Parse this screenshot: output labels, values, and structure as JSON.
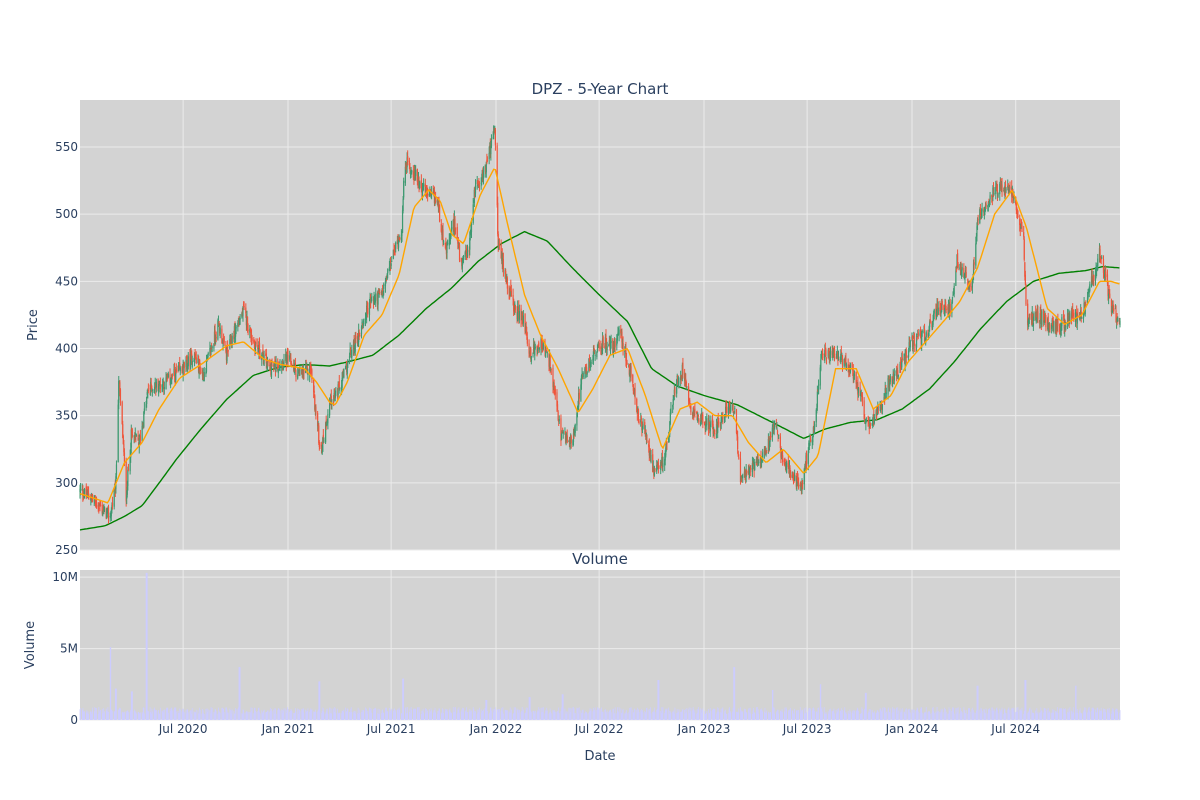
{
  "chart_data": [
    {
      "type": "candlestick",
      "title": "DPZ - 5-Year Chart",
      "xlabel": "",
      "ylabel": "Price",
      "ylim": [
        250,
        585
      ],
      "yticks": [
        250,
        300,
        350,
        400,
        450,
        500,
        550
      ],
      "grid": true,
      "legend": "none",
      "date_range": [
        "2020-01-02",
        "2024-12-31"
      ],
      "colors": {
        "up": "#3d9970",
        "down": "#ef553b",
        "ma_short": "#ffa500",
        "ma_long": "#008000",
        "plot_bg": "#d3d3d3"
      },
      "close_anchors": [
        [
          "2020-01-02",
          294
        ],
        [
          "2020-01-20",
          290
        ],
        [
          "2020-02-10",
          280
        ],
        [
          "2020-02-24",
          275
        ],
        [
          "2020-03-05",
          300
        ],
        [
          "2020-03-10",
          378
        ],
        [
          "2020-03-17",
          335
        ],
        [
          "2020-03-23",
          290
        ],
        [
          "2020-04-01",
          335
        ],
        [
          "2020-04-15",
          330
        ],
        [
          "2020-05-01",
          370
        ],
        [
          "2020-06-01",
          375
        ],
        [
          "2020-07-01",
          385
        ],
        [
          "2020-07-20",
          395
        ],
        [
          "2020-08-05",
          380
        ],
        [
          "2020-09-01",
          418
        ],
        [
          "2020-09-15",
          395
        ],
        [
          "2020-10-01",
          415
        ],
        [
          "2020-10-15",
          428
        ],
        [
          "2020-11-01",
          405
        ],
        [
          "2020-12-01",
          385
        ],
        [
          "2021-01-01",
          392
        ],
        [
          "2021-01-20",
          380
        ],
        [
          "2021-02-10",
          385
        ],
        [
          "2021-02-25",
          330
        ],
        [
          "2021-03-01",
          325
        ],
        [
          "2021-03-15",
          360
        ],
        [
          "2021-04-01",
          370
        ],
        [
          "2021-04-20",
          395
        ],
        [
          "2021-05-05",
          410
        ],
        [
          "2021-05-25",
          435
        ],
        [
          "2021-06-15",
          440
        ],
        [
          "2021-07-01",
          465
        ],
        [
          "2021-07-20",
          490
        ],
        [
          "2021-07-25",
          540
        ],
        [
          "2021-08-10",
          530
        ],
        [
          "2021-09-01",
          515
        ],
        [
          "2021-09-20",
          510
        ],
        [
          "2021-10-05",
          470
        ],
        [
          "2021-10-20",
          495
        ],
        [
          "2021-11-01",
          460
        ],
        [
          "2021-11-15",
          475
        ],
        [
          "2021-11-25",
          520
        ],
        [
          "2021-12-10",
          530
        ],
        [
          "2021-12-20",
          545
        ],
        [
          "2021-12-30",
          565
        ],
        [
          "2022-01-05",
          475
        ],
        [
          "2022-01-15",
          460
        ],
        [
          "2022-02-01",
          430
        ],
        [
          "2022-02-20",
          420
        ],
        [
          "2022-03-01",
          395
        ],
        [
          "2022-03-20",
          405
        ],
        [
          "2022-04-05",
          390
        ],
        [
          "2022-04-25",
          335
        ],
        [
          "2022-05-15",
          330
        ],
        [
          "2022-05-30",
          375
        ],
        [
          "2022-06-20",
          395
        ],
        [
          "2022-07-10",
          405
        ],
        [
          "2022-07-25",
          400
        ],
        [
          "2022-08-05",
          415
        ],
        [
          "2022-08-25",
          380
        ],
        [
          "2022-09-10",
          345
        ],
        [
          "2022-09-25",
          330
        ],
        [
          "2022-10-05",
          305
        ],
        [
          "2022-10-25",
          320
        ],
        [
          "2022-11-10",
          370
        ],
        [
          "2022-11-25",
          385
        ],
        [
          "2022-12-10",
          355
        ],
        [
          "2023-01-01",
          345
        ],
        [
          "2023-01-20",
          340
        ],
        [
          "2023-02-10",
          355
        ],
        [
          "2023-02-25",
          355
        ],
        [
          "2023-03-05",
          300
        ],
        [
          "2023-03-25",
          310
        ],
        [
          "2023-04-10",
          320
        ],
        [
          "2023-04-25",
          330
        ],
        [
          "2023-05-05",
          345
        ],
        [
          "2023-05-20",
          315
        ],
        [
          "2023-06-05",
          305
        ],
        [
          "2023-06-20",
          295
        ],
        [
          "2023-07-01",
          320
        ],
        [
          "2023-07-15",
          345
        ],
        [
          "2023-07-25",
          395
        ],
        [
          "2023-08-20",
          395
        ],
        [
          "2023-09-15",
          385
        ],
        [
          "2023-10-05",
          360
        ],
        [
          "2023-10-15",
          340
        ],
        [
          "2023-11-01",
          350
        ],
        [
          "2023-11-20",
          375
        ],
        [
          "2023-12-10",
          385
        ],
        [
          "2024-01-01",
          405
        ],
        [
          "2024-01-25",
          410
        ],
        [
          "2024-02-15",
          430
        ],
        [
          "2024-03-10",
          430
        ],
        [
          "2024-03-20",
          465
        ],
        [
          "2024-04-15",
          445
        ],
        [
          "2024-04-26",
          500
        ],
        [
          "2024-05-20",
          515
        ],
        [
          "2024-06-05",
          520
        ],
        [
          "2024-06-25",
          515
        ],
        [
          "2024-07-05",
          500
        ],
        [
          "2024-07-15",
          480
        ],
        [
          "2024-07-20",
          420
        ],
        [
          "2024-08-10",
          425
        ],
        [
          "2024-09-10",
          415
        ],
        [
          "2024-10-10",
          425
        ],
        [
          "2024-10-25",
          425
        ],
        [
          "2024-11-15",
          455
        ],
        [
          "2024-11-25",
          470
        ],
        [
          "2024-12-05",
          455
        ],
        [
          "2024-12-15",
          430
        ],
        [
          "2024-12-31",
          420
        ]
      ],
      "ma_short": [
        [
          "2020-01-02",
          292
        ],
        [
          "2020-02-20",
          285
        ],
        [
          "2020-03-20",
          315
        ],
        [
          "2020-04-20",
          330
        ],
        [
          "2020-05-20",
          355
        ],
        [
          "2020-06-25",
          378
        ],
        [
          "2020-08-01",
          388
        ],
        [
          "2020-09-15",
          402
        ],
        [
          "2020-10-15",
          405
        ],
        [
          "2020-11-20",
          392
        ],
        [
          "2020-12-20",
          388
        ],
        [
          "2021-01-30",
          385
        ],
        [
          "2021-02-20",
          375
        ],
        [
          "2021-03-15",
          360
        ],
        [
          "2021-03-25",
          358
        ],
        [
          "2021-04-15",
          375
        ],
        [
          "2021-05-15",
          410
        ],
        [
          "2021-06-15",
          425
        ],
        [
          "2021-07-15",
          455
        ],
        [
          "2021-08-10",
          505
        ],
        [
          "2021-09-05",
          518
        ],
        [
          "2021-09-25",
          510
        ],
        [
          "2021-10-15",
          485
        ],
        [
          "2021-11-05",
          478
        ],
        [
          "2021-12-05",
          515
        ],
        [
          "2021-12-30",
          535
        ],
        [
          "2022-01-20",
          495
        ],
        [
          "2022-02-20",
          440
        ],
        [
          "2022-03-20",
          410
        ],
        [
          "2022-04-20",
          385
        ],
        [
          "2022-05-25",
          352
        ],
        [
          "2022-06-20",
          370
        ],
        [
          "2022-07-20",
          395
        ],
        [
          "2022-08-20",
          400
        ],
        [
          "2022-09-20",
          365
        ],
        [
          "2022-10-20",
          325
        ],
        [
          "2022-11-20",
          355
        ],
        [
          "2022-12-20",
          360
        ],
        [
          "2023-01-20",
          350
        ],
        [
          "2023-02-20",
          350
        ],
        [
          "2023-03-20",
          330
        ],
        [
          "2023-04-20",
          315
        ],
        [
          "2023-05-20",
          325
        ],
        [
          "2023-06-25",
          307
        ],
        [
          "2023-07-20",
          320
        ],
        [
          "2023-08-20",
          385
        ],
        [
          "2023-09-25",
          385
        ],
        [
          "2023-10-25",
          355
        ],
        [
          "2023-11-25",
          365
        ],
        [
          "2023-12-25",
          390
        ],
        [
          "2024-01-25",
          405
        ],
        [
          "2024-02-25",
          420
        ],
        [
          "2024-03-25",
          435
        ],
        [
          "2024-04-25",
          460
        ],
        [
          "2024-05-25",
          500
        ],
        [
          "2024-06-25",
          518
        ],
        [
          "2024-07-20",
          490
        ],
        [
          "2024-08-25",
          430
        ],
        [
          "2024-09-25",
          418
        ],
        [
          "2024-10-25",
          425
        ],
        [
          "2024-11-25",
          450
        ],
        [
          "2024-12-15",
          450
        ],
        [
          "2024-12-31",
          448
        ]
      ],
      "ma_long": [
        [
          "2020-01-02",
          265
        ],
        [
          "2020-02-15",
          268
        ],
        [
          "2020-03-20",
          275
        ],
        [
          "2020-04-20",
          283
        ],
        [
          "2020-05-20",
          300
        ],
        [
          "2020-06-20",
          318
        ],
        [
          "2020-08-01",
          340
        ],
        [
          "2020-09-15",
          362
        ],
        [
          "2020-11-01",
          380
        ],
        [
          "2020-12-15",
          386
        ],
        [
          "2021-01-30",
          388
        ],
        [
          "2021-03-15",
          387
        ],
        [
          "2021-04-15",
          390
        ],
        [
          "2021-05-30",
          395
        ],
        [
          "2021-07-15",
          410
        ],
        [
          "2021-09-01",
          430
        ],
        [
          "2021-10-15",
          445
        ],
        [
          "2021-12-01",
          465
        ],
        [
          "2022-01-10",
          478
        ],
        [
          "2022-02-20",
          487
        ],
        [
          "2022-04-01",
          480
        ],
        [
          "2022-05-15",
          460
        ],
        [
          "2022-07-01",
          440
        ],
        [
          "2022-08-20",
          420
        ],
        [
          "2022-10-01",
          385
        ],
        [
          "2022-11-15",
          372
        ],
        [
          "2023-01-01",
          365
        ],
        [
          "2023-03-01",
          358
        ],
        [
          "2023-05-01",
          345
        ],
        [
          "2023-06-25",
          333
        ],
        [
          "2023-08-01",
          340
        ],
        [
          "2023-09-15",
          345
        ],
        [
          "2023-11-01",
          347
        ],
        [
          "2023-12-15",
          355
        ],
        [
          "2024-02-01",
          370
        ],
        [
          "2024-03-15",
          390
        ],
        [
          "2024-05-01",
          415
        ],
        [
          "2024-06-15",
          435
        ],
        [
          "2024-08-01",
          450
        ],
        [
          "2024-09-15",
          456
        ],
        [
          "2024-11-01",
          458
        ],
        [
          "2024-12-01",
          461
        ],
        [
          "2024-12-31",
          460
        ]
      ]
    },
    {
      "type": "bar",
      "title": "Volume",
      "xlabel": "Date",
      "ylabel": "Volume",
      "ylim": [
        0,
        10500000
      ],
      "yticks": [
        0,
        5000000,
        10000000
      ],
      "ytick_labels": [
        "0",
        "5M",
        "10M"
      ],
      "xticks": [
        "2020-07-01",
        "2021-01-01",
        "2021-07-01",
        "2022-01-01",
        "2022-07-01",
        "2023-01-01",
        "2023-07-01",
        "2024-01-01",
        "2024-07-01"
      ],
      "xtick_labels": [
        "Jul 2020",
        "Jan 2021",
        "Jul 2021",
        "Jan 2022",
        "Jul 2022",
        "Jan 2023",
        "Jul 2023",
        "Jan 2024",
        "Jul 2024"
      ],
      "color": "#ccccff",
      "baseline": 700000,
      "spikes": [
        [
          "2020-02-24",
          5100000
        ],
        [
          "2020-03-05",
          2200000
        ],
        [
          "2020-04-02",
          2000000
        ],
        [
          "2020-04-28",
          10300000
        ],
        [
          "2020-10-08",
          3700000
        ],
        [
          "2021-02-25",
          2700000
        ],
        [
          "2021-07-22",
          2900000
        ],
        [
          "2021-12-15",
          1400000
        ],
        [
          "2022-03-01",
          1600000
        ],
        [
          "2022-04-28",
          1800000
        ],
        [
          "2022-10-13",
          2800000
        ],
        [
          "2023-02-23",
          3700000
        ],
        [
          "2023-05-01",
          2100000
        ],
        [
          "2023-07-24",
          2500000
        ],
        [
          "2023-10-12",
          1900000
        ],
        [
          "2024-04-25",
          2400000
        ],
        [
          "2024-07-18",
          2800000
        ],
        [
          "2024-10-14",
          2400000
        ]
      ]
    }
  ],
  "labels": {
    "price_title": "DPZ - 5-Year Chart",
    "price_ylabel": "Price",
    "volume_title": "Volume",
    "volume_ylabel": "Volume",
    "volume_xlabel": "Date"
  }
}
